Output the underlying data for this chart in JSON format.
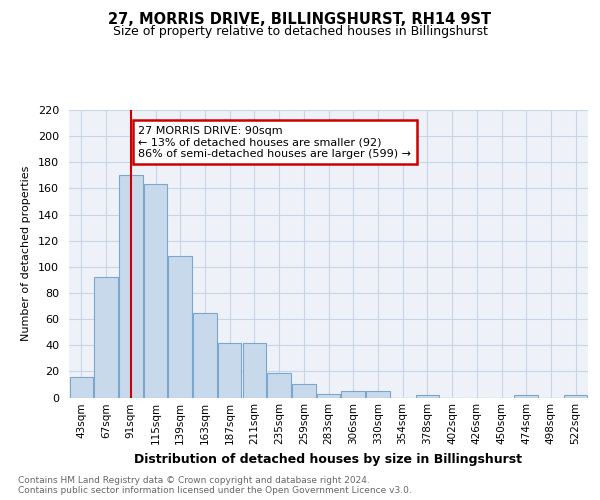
{
  "title": "27, MORRIS DRIVE, BILLINGSHURST, RH14 9ST",
  "subtitle": "Size of property relative to detached houses in Billingshurst",
  "xlabel": "Distribution of detached houses by size in Billingshurst",
  "ylabel": "Number of detached properties",
  "categories": [
    "43sqm",
    "67sqm",
    "91sqm",
    "115sqm",
    "139sqm",
    "163sqm",
    "187sqm",
    "211sqm",
    "235sqm",
    "259sqm",
    "283sqm",
    "306sqm",
    "330sqm",
    "354sqm",
    "378sqm",
    "402sqm",
    "426sqm",
    "450sqm",
    "474sqm",
    "498sqm",
    "522sqm"
  ],
  "values": [
    16,
    92,
    170,
    163,
    108,
    65,
    42,
    42,
    19,
    10,
    3,
    5,
    5,
    0,
    2,
    0,
    0,
    0,
    2,
    0,
    2
  ],
  "bar_color": "#c9d9ec",
  "bar_edge_color": "#7ba7cc",
  "annotation_text": "27 MORRIS DRIVE: 90sqm\n← 13% of detached houses are smaller (92)\n86% of semi-detached houses are larger (599) →",
  "annotation_box_color": "white",
  "annotation_box_edge_color": "#cc0000",
  "vline_color": "#cc0000",
  "vline_x_index": 2,
  "ylim": [
    0,
    220
  ],
  "yticks": [
    0,
    20,
    40,
    60,
    80,
    100,
    120,
    140,
    160,
    180,
    200,
    220
  ],
  "footnote": "Contains HM Land Registry data © Crown copyright and database right 2024.\nContains public sector information licensed under the Open Government Licence v3.0.",
  "bg_color": "white",
  "plot_bg_color": "#eef2f8",
  "grid_color": "#c8d4e8"
}
